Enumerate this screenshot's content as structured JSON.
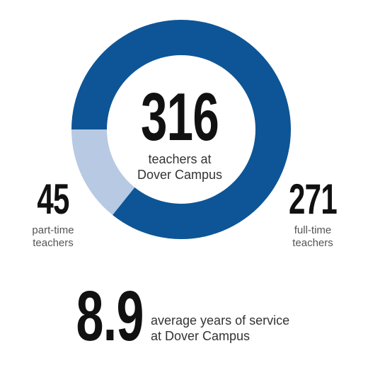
{
  "chart_data": {
    "type": "pie",
    "title": "316",
    "subtitle": "teachers at\nDover Campus",
    "slices": [
      {
        "label": "full-time\nteachers",
        "value": 271,
        "color": "#0d5596"
      },
      {
        "label": "part-time\nteachers",
        "value": 45,
        "color": "#b8c9e3"
      }
    ]
  },
  "stat": {
    "value": "8.9",
    "label": "average years of service\nat Dover Campus"
  }
}
